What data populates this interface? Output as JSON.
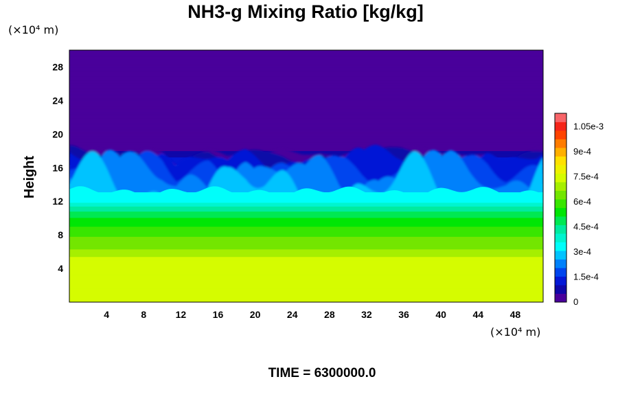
{
  "chart_data": {
    "type": "heatmap",
    "title": "NH3-g Mixing Ratio [kg/kg]",
    "xlabel": "",
    "ylabel": "Height",
    "x_unit": "(×10⁴ m)",
    "y_unit": "(×10⁴ m)",
    "xlim": [
      0,
      51
    ],
    "ylim": [
      0,
      30
    ],
    "x_ticks": [
      4,
      8,
      12,
      16,
      20,
      24,
      28,
      32,
      36,
      40,
      44,
      48
    ],
    "y_ticks": [
      4,
      8,
      12,
      16,
      20,
      24,
      28
    ],
    "colorbar": {
      "ticks": [
        {
          "value": 0,
          "label": "0"
        },
        {
          "value": 0.00015,
          "label": "1.5e-4"
        },
        {
          "value": 0.0003,
          "label": "3e-4"
        },
        {
          "value": 0.00045,
          "label": "4.5e-4"
        },
        {
          "value": 0.0006,
          "label": "6e-4"
        },
        {
          "value": 0.00075,
          "label": "7.5e-4"
        },
        {
          "value": 0.0009,
          "label": "9e-4"
        },
        {
          "value": 0.00105,
          "label": "1.05e-3"
        }
      ],
      "max": 0.00113,
      "levels": 22
    },
    "profile": [
      {
        "height": 0,
        "value": 0.00075
      },
      {
        "height": 4.8,
        "value": 0.00075
      },
      {
        "height": 6.5,
        "value": 0.00066
      },
      {
        "height": 8.5,
        "value": 0.00059
      },
      {
        "height": 10.0,
        "value": 0.00052
      },
      {
        "height": 11.2,
        "value": 0.00044
      },
      {
        "height": 12.0,
        "value": 0.00033
      },
      {
        "height": 13.0,
        "value": 0.00031
      },
      {
        "height": 13.8,
        "value": 0.00027
      },
      {
        "height": 15.5,
        "value": 0.0002
      },
      {
        "height": 17.0,
        "value": 0.00012
      },
      {
        "height": 18.0,
        "value": 5e-05
      },
      {
        "height": 18.5,
        "value": 0.0
      }
    ],
    "top_boundary": [
      {
        "x": 0,
        "h": 18.3
      },
      {
        "x": 2,
        "h": 18.1
      },
      {
        "x": 4,
        "h": 18.2
      },
      {
        "x": 6,
        "h": 17.9
      },
      {
        "x": 8,
        "h": 18.0
      },
      {
        "x": 10,
        "h": 17.8
      },
      {
        "x": 11.5,
        "h": 16.5
      },
      {
        "x": 13,
        "h": 17.4
      },
      {
        "x": 15,
        "h": 18.0
      },
      {
        "x": 17,
        "h": 17.3
      },
      {
        "x": 19,
        "h": 18.1
      },
      {
        "x": 21,
        "h": 17.6
      },
      {
        "x": 23,
        "h": 18.0
      },
      {
        "x": 25,
        "h": 17.7
      },
      {
        "x": 27,
        "h": 17.9
      },
      {
        "x": 29,
        "h": 17.1
      },
      {
        "x": 31,
        "h": 17.9
      },
      {
        "x": 33,
        "h": 18.2
      },
      {
        "x": 35,
        "h": 18.0
      },
      {
        "x": 37,
        "h": 18.3
      },
      {
        "x": 39,
        "h": 18.1
      },
      {
        "x": 41,
        "h": 17.9
      },
      {
        "x": 43,
        "h": 17.2
      },
      {
        "x": 45,
        "h": 17.5
      },
      {
        "x": 47,
        "h": 16.8
      },
      {
        "x": 49,
        "h": 17.6
      },
      {
        "x": 51,
        "h": 18.3
      }
    ]
  },
  "footer": {
    "time_label": "TIME = 6300000.0"
  }
}
